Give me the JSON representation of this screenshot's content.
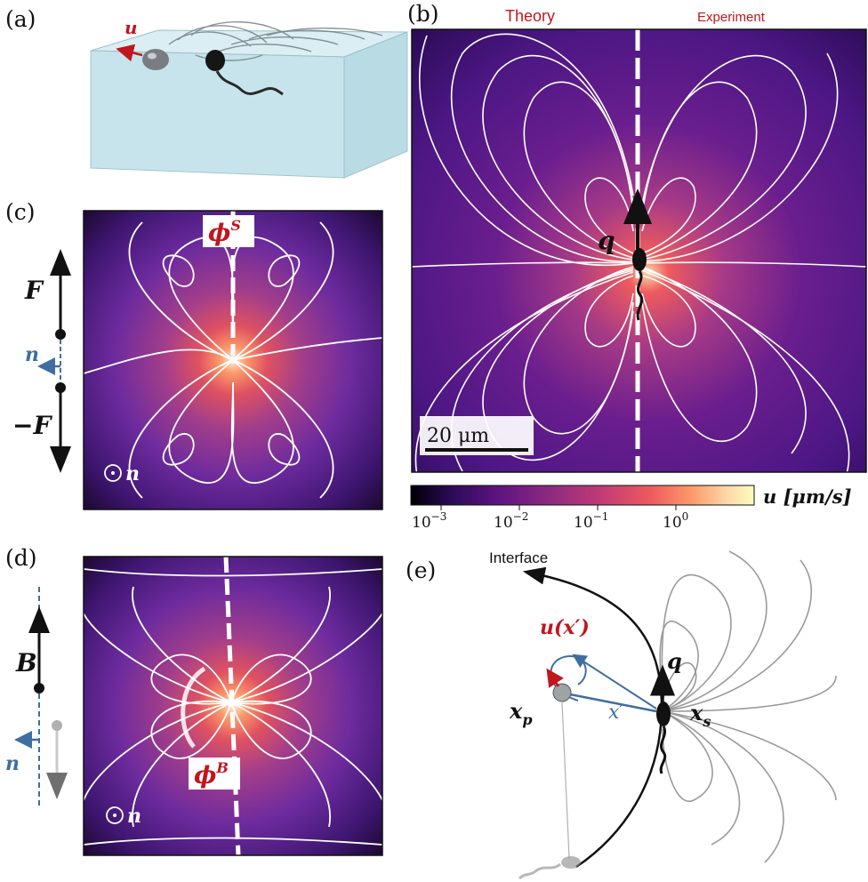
{
  "panels": {
    "a": {
      "letter": "(a)",
      "vector": "u"
    },
    "b": {
      "letter": "(b)",
      "left_title": "Theory",
      "right_title": "Experiment",
      "swimmer_vector": "q",
      "scale_bar": "20 μm"
    },
    "c": {
      "letter": "(c)",
      "phi": "ϕ",
      "phi_sup": "S",
      "force_up": "F",
      "force_down": "−F",
      "normal": "n",
      "normal_out": "n"
    },
    "d": {
      "letter": "(d)",
      "phi": "ϕ",
      "phi_sup": "B",
      "dipole": "B",
      "normal": "n",
      "normal_out": "n"
    },
    "e": {
      "letter": "(e)",
      "interface": "Interface",
      "flow_label": "u(x′)",
      "swimmer_vector": "q",
      "particle_pos": "x",
      "particle_sub": "p",
      "swimmer_pos": "x",
      "swimmer_sub": "s",
      "rel": "x′"
    }
  },
  "colorbar": {
    "label": "u [μm/s]",
    "ticks": [
      {
        "base": "10",
        "exp": "−3"
      },
      {
        "base": "10",
        "exp": "−2"
      },
      {
        "base": "10",
        "exp": "−1"
      },
      {
        "base": "10",
        "exp": "0"
      }
    ],
    "scale": "log",
    "colors": [
      "#000004",
      "#2b0b57",
      "#5c1380",
      "#8c2981",
      "#c03a76",
      "#ee5b5e",
      "#fd9a6a",
      "#fdd7a8",
      "#fcfdbf"
    ]
  }
}
